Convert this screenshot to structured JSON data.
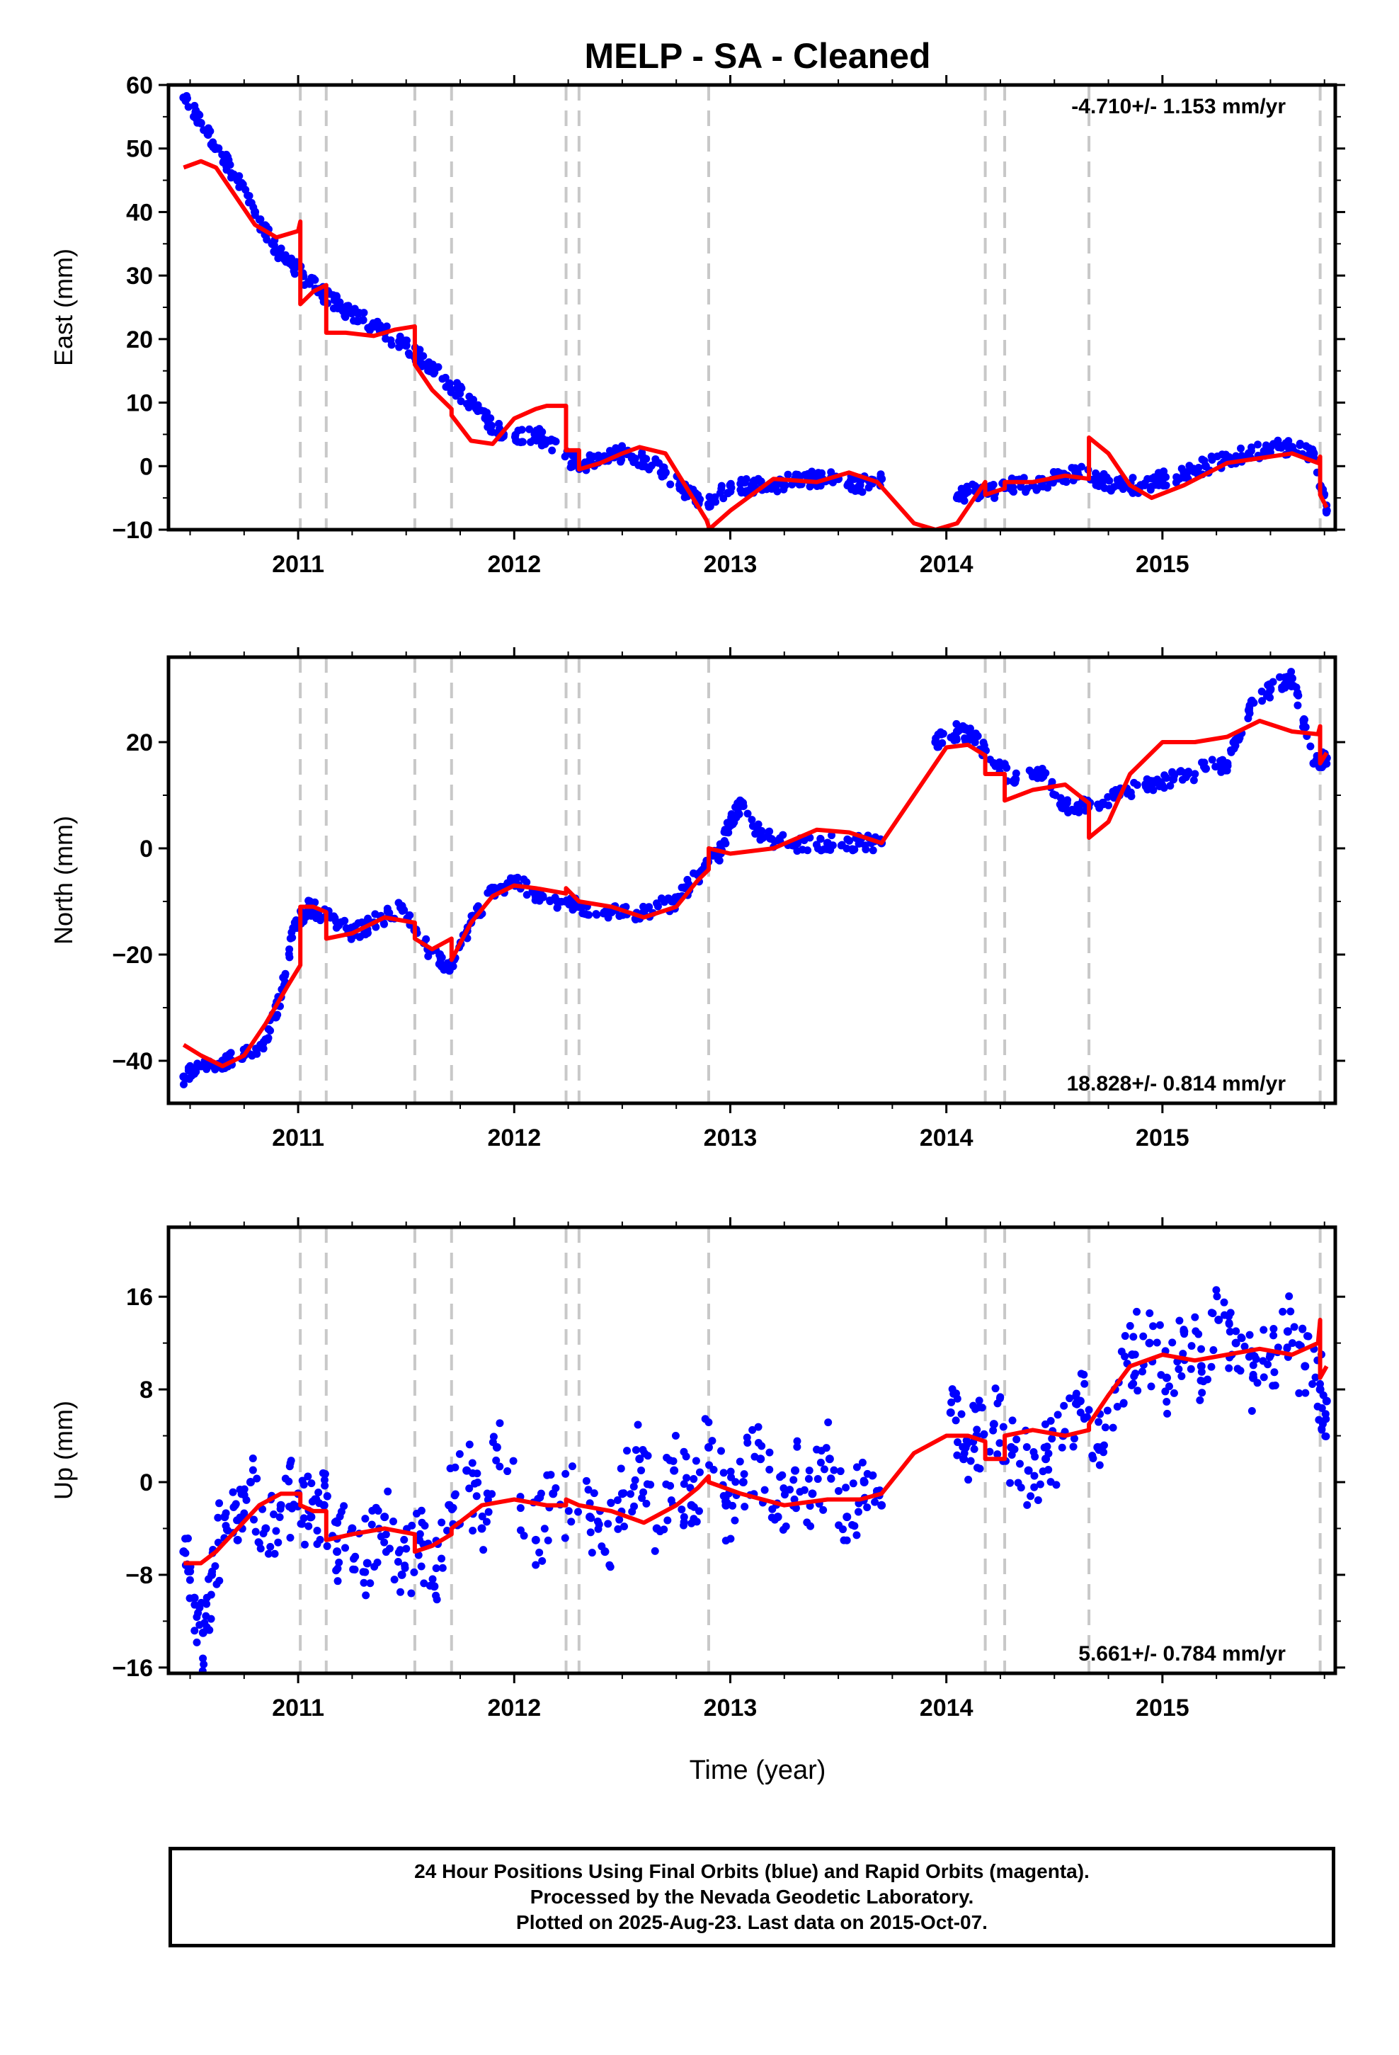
{
  "chart_data": [
    {
      "type": "scatter",
      "title": "MELP  - SA - Cleaned",
      "ylabel": "East (mm)",
      "xlabel": "",
      "xlim": [
        2010.4,
        2015.8
      ],
      "ylim": [
        -10,
        60
      ],
      "yticks": [
        -10,
        0,
        10,
        20,
        30,
        40,
        50,
        60
      ],
      "xticks": [
        2011,
        2012,
        2013,
        2014,
        2015
      ],
      "rate_text": "-4.710+/- 1.153 mm/yr",
      "rate_position": "top-right",
      "event_lines": [
        2011.01,
        2011.13,
        2011.54,
        2011.71,
        2012.24,
        2012.3,
        2012.9,
        2014.18,
        2014.27,
        2014.66,
        2015.73
      ],
      "dashed_lines_color": "#c8c8c8",
      "series": [
        {
          "color": "#0000ff",
          "kind": "points",
          "x": [
            2010.47,
            2010.55,
            2010.63,
            2010.72,
            2010.8,
            2010.88,
            2010.96,
            2011.05,
            2011.12,
            2011.2,
            2011.3,
            2011.4,
            2011.5,
            2011.6,
            2011.7,
            2011.8,
            2011.88,
            2011.95,
            2012.1,
            2012.15,
            2012.3,
            2012.4,
            2012.5,
            2012.6,
            2012.7,
            2012.8,
            2012.9,
            2013.0,
            2013.1,
            2013.2,
            2013.3,
            2013.4,
            2013.5,
            2013.6,
            2013.7,
            2014.05,
            2014.1,
            2014.2,
            2014.3,
            2014.4,
            2014.5,
            2014.6,
            2014.7,
            2014.8,
            2014.9,
            2015.0,
            2015.1,
            2015.2,
            2015.3,
            2015.4,
            2015.5,
            2015.6,
            2015.7,
            2015.76
          ],
          "y": [
            58,
            54,
            50,
            45,
            40,
            35,
            32,
            29,
            27,
            25,
            23,
            21,
            19,
            16,
            13,
            10,
            7,
            5,
            5,
            4,
            0,
            1,
            2,
            1,
            -1,
            -4,
            -6,
            -3,
            -3,
            -3,
            -2,
            -2,
            -2,
            -3,
            -2,
            -5,
            -4,
            -4,
            -3,
            -3,
            -2,
            -1,
            -2,
            -3,
            -3,
            -2,
            -1,
            0,
            1,
            2,
            3,
            3,
            2,
            -7
          ]
        },
        {
          "color": "#ff0000",
          "kind": "line",
          "x": [
            2010.47,
            2010.55,
            2010.62,
            2010.7,
            2010.8,
            2010.9,
            2011.0,
            2011.01,
            2011.01,
            2011.07,
            2011.13,
            2011.13,
            2011.22,
            2011.35,
            2011.45,
            2011.54,
            2011.54,
            2011.62,
            2011.71,
            2011.71,
            2011.8,
            2011.9,
            2012.0,
            2012.1,
            2012.15,
            2012.24,
            2012.24,
            2012.3,
            2012.3,
            2012.4,
            2012.5,
            2012.58,
            2012.7,
            2012.8,
            2012.89,
            2012.9,
            2012.9,
            2013.0,
            2013.2,
            2013.4,
            2013.55,
            2013.68,
            2013.85,
            2013.95,
            2014.05,
            2014.18,
            2014.18,
            2014.27,
            2014.27,
            2014.4,
            2014.55,
            2014.66,
            2014.66,
            2014.75,
            2014.85,
            2014.95,
            2015.1,
            2015.3,
            2015.5,
            2015.6,
            2015.72,
            2015.73,
            2015.73,
            2015.76
          ],
          "y": [
            47,
            48,
            47,
            43,
            38,
            36,
            37,
            38.5,
            25.5,
            27.5,
            28.5,
            21,
            21,
            20.5,
            21.5,
            22,
            16,
            12,
            9,
            8,
            4,
            3.5,
            7.5,
            9,
            9.5,
            9.5,
            2.5,
            2.5,
            -0.5,
            0.5,
            2,
            3,
            2,
            -3.5,
            -8.5,
            -9.5,
            -10,
            -7,
            -2,
            -2.5,
            -1,
            -2.5,
            -9,
            -10,
            -9,
            -2.5,
            -4.5,
            -3.5,
            -2.5,
            -2.5,
            -1.5,
            -2,
            4.5,
            2,
            -3,
            -5,
            -3,
            0.5,
            1.5,
            2,
            0.5,
            1.5,
            -4.5,
            -6.5
          ]
        }
      ]
    },
    {
      "type": "scatter",
      "title": "",
      "ylabel": "North (mm)",
      "xlabel": "",
      "xlim": [
        2010.4,
        2015.8
      ],
      "ylim": [
        -48,
        36
      ],
      "yticks": [
        -40,
        -20,
        0,
        20
      ],
      "xticks": [
        2011,
        2012,
        2013,
        2014,
        2015
      ],
      "rate_text": "18.828+/- 0.814 mm/yr",
      "rate_position": "bottom-right",
      "event_lines": [
        2011.01,
        2011.13,
        2011.54,
        2011.71,
        2012.24,
        2012.3,
        2012.9,
        2014.18,
        2014.27,
        2014.66,
        2015.73
      ],
      "dashed_lines_color": "#c8c8c8",
      "series": [
        {
          "color": "#0000ff",
          "kind": "points",
          "x": [
            2010.47,
            2010.55,
            2010.65,
            2010.75,
            2010.85,
            2010.92,
            2010.98,
            2011.05,
            2011.15,
            2011.25,
            2011.35,
            2011.48,
            2011.6,
            2011.7,
            2011.8,
            2011.9,
            2012.0,
            2012.1,
            2012.2,
            2012.3,
            2012.45,
            2012.6,
            2012.75,
            2012.85,
            2012.95,
            2013.0,
            2013.05,
            2013.15,
            2013.3,
            2013.45,
            2013.6,
            2013.7,
            2013.95,
            2014.05,
            2014.12,
            2014.22,
            2014.32,
            2014.45,
            2014.55,
            2014.65,
            2014.8,
            2014.95,
            2015.05,
            2015.2,
            2015.3,
            2015.4,
            2015.5,
            2015.6,
            2015.7,
            2015.76
          ],
          "y": [
            -43,
            -41,
            -40,
            -39,
            -36,
            -28,
            -15,
            -11,
            -13,
            -16,
            -14,
            -11,
            -19,
            -23,
            -14,
            -8,
            -6,
            -9,
            -10,
            -11,
            -12,
            -12,
            -10,
            -5,
            -1,
            5,
            8,
            2,
            1,
            1,
            1,
            1,
            20,
            22,
            21,
            16,
            13,
            14,
            8,
            8,
            10,
            12,
            13,
            15,
            16,
            26,
            30,
            32,
            16,
            17
          ]
        },
        {
          "color": "#ff0000",
          "kind": "line",
          "x": [
            2010.47,
            2010.55,
            2010.65,
            2010.75,
            2010.85,
            2010.95,
            2011.01,
            2011.01,
            2011.07,
            2011.13,
            2011.13,
            2011.25,
            2011.4,
            2011.54,
            2011.54,
            2011.62,
            2011.71,
            2011.71,
            2011.8,
            2011.9,
            2012.0,
            2012.1,
            2012.24,
            2012.24,
            2012.3,
            2012.3,
            2012.45,
            2012.6,
            2012.75,
            2012.85,
            2012.9,
            2012.9,
            2013.0,
            2013.2,
            2013.4,
            2013.55,
            2013.7,
            2013.85,
            2014.0,
            2014.1,
            2014.18,
            2014.18,
            2014.27,
            2014.27,
            2014.4,
            2014.55,
            2014.66,
            2014.66,
            2014.75,
            2014.85,
            2015.0,
            2015.15,
            2015.3,
            2015.45,
            2015.6,
            2015.72,
            2015.73,
            2015.73,
            2015.76
          ],
          "y": [
            -37,
            -39,
            -41,
            -39,
            -33,
            -26,
            -22,
            -11,
            -11,
            -12,
            -17,
            -16,
            -13,
            -14,
            -17,
            -19,
            -17,
            -21,
            -14,
            -9,
            -7,
            -7.5,
            -8.5,
            -7.5,
            -10,
            -10,
            -11,
            -13,
            -11,
            -6,
            -4,
            0,
            -1,
            0,
            3.5,
            3,
            1,
            10,
            19,
            19.5,
            17.5,
            14,
            14,
            9,
            11,
            12,
            8.5,
            2,
            5,
            14,
            20,
            20,
            21,
            24,
            22,
            21.5,
            23,
            16,
            18
          ]
        }
      ]
    },
    {
      "type": "scatter",
      "title": "",
      "ylabel": "Up (mm)",
      "xlabel": "Time (year)",
      "xlim": [
        2010.4,
        2015.8
      ],
      "ylim": [
        -16.5,
        22
      ],
      "yticks": [
        -16,
        -8,
        0,
        8,
        16
      ],
      "xticks": [
        2011,
        2012,
        2013,
        2014,
        2015
      ],
      "rate_text": "5.661+/- 0.784 mm/yr",
      "rate_position": "bottom-right",
      "event_lines": [
        2011.01,
        2011.13,
        2011.54,
        2011.71,
        2012.24,
        2012.3,
        2012.9,
        2014.18,
        2014.27,
        2014.66,
        2015.73
      ],
      "dashed_lines_color": "#c8c8c8",
      "series": [
        {
          "color": "#0000ff",
          "kind": "points",
          "x": [
            2010.47,
            2010.52,
            2010.56,
            2010.6,
            2010.66,
            2010.72,
            2010.78,
            2010.85,
            2010.92,
            2011.0,
            2011.06,
            2011.12,
            2011.18,
            2011.25,
            2011.32,
            2011.4,
            2011.48,
            2011.56,
            2011.63,
            2011.7,
            2011.78,
            2011.85,
            2011.92,
            2012.1,
            2012.18,
            2012.35,
            2012.42,
            2012.5,
            2012.58,
            2012.66,
            2012.74,
            2012.82,
            2012.9,
            2012.98,
            2013.06,
            2013.14,
            2013.22,
            2013.3,
            2013.38,
            2013.46,
            2013.54,
            2013.62,
            2013.7,
            2014.02,
            2014.08,
            2014.14,
            2014.22,
            2014.3,
            2014.38,
            2014.46,
            2014.54,
            2014.62,
            2014.7,
            2014.78,
            2014.86,
            2014.94,
            2015.02,
            2015.1,
            2015.18,
            2015.26,
            2015.34,
            2015.42,
            2015.5,
            2015.58,
            2015.66,
            2015.73,
            2015.76
          ],
          "y": [
            -6,
            -10,
            -13,
            -8,
            -3,
            -5,
            0,
            -4,
            -2,
            -1,
            -3,
            -2,
            -6,
            -4,
            -7,
            -3,
            -8,
            -5,
            -9,
            -2,
            1,
            -4,
            3,
            -5,
            -1,
            -3,
            -6,
            -1,
            2,
            -4,
            1,
            -2,
            3,
            -2,
            0,
            2,
            -3,
            1,
            -1,
            2,
            -3,
            0,
            -2,
            6,
            2,
            4,
            5,
            3,
            1,
            2,
            4,
            7,
            3,
            8,
            11,
            12,
            9,
            13,
            10,
            14,
            12,
            9,
            11,
            13,
            10,
            8,
            7
          ]
        },
        {
          "color": "#ff0000",
          "kind": "line",
          "x": [
            2010.47,
            2010.55,
            2010.62,
            2010.72,
            2010.82,
            2010.92,
            2011.01,
            2011.01,
            2011.07,
            2011.13,
            2011.13,
            2011.25,
            2011.4,
            2011.54,
            2011.54,
            2011.62,
            2011.71,
            2011.71,
            2011.85,
            2012.0,
            2012.15,
            2012.24,
            2012.24,
            2012.3,
            2012.3,
            2012.45,
            2012.6,
            2012.75,
            2012.85,
            2012.9,
            2012.9,
            2013.05,
            2013.25,
            2013.45,
            2013.6,
            2013.7,
            2013.85,
            2014.0,
            2014.1,
            2014.18,
            2014.18,
            2014.27,
            2014.27,
            2014.4,
            2014.55,
            2014.66,
            2014.66,
            2014.75,
            2014.85,
            2015.0,
            2015.15,
            2015.3,
            2015.45,
            2015.6,
            2015.72,
            2015.73,
            2015.73,
            2015.76
          ],
          "y": [
            -7,
            -7,
            -6,
            -4,
            -2,
            -1,
            -1,
            -2,
            -2.5,
            -2.5,
            -5,
            -4.5,
            -4,
            -4.5,
            -6,
            -5.5,
            -4.5,
            -4,
            -2,
            -1.5,
            -2,
            -2,
            -1.5,
            -2,
            -2,
            -2.5,
            -3.5,
            -2,
            -0.5,
            0.5,
            0,
            -1,
            -2,
            -1.5,
            -1.5,
            -1,
            2.5,
            4,
            4,
            3.5,
            2,
            2,
            4,
            4.5,
            4,
            4.5,
            5,
            7.5,
            10,
            11,
            10.5,
            11,
            11.5,
            11,
            12,
            14,
            9,
            10
          ]
        }
      ]
    }
  ],
  "figure": {
    "title": "MELP  - SA - Cleaned",
    "xlabel": "Time (year)",
    "footer_lines": [
      "24 Hour Positions Using Final Orbits (blue) and Rapid Orbits (magenta).",
      "Processed by the Nevada Geodetic Laboratory.",
      "Plotted on 2025-Aug-23. Last data on 2015-Oct-07."
    ]
  }
}
